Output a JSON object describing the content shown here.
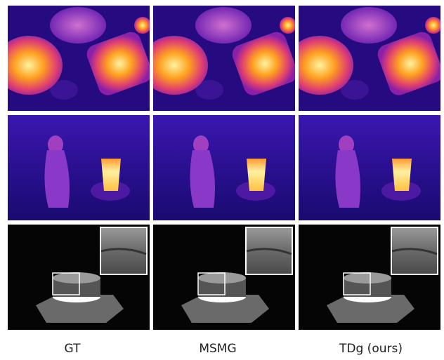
{
  "columns": [
    "GT",
    "MSMG",
    "TDg (ours)"
  ]
}
